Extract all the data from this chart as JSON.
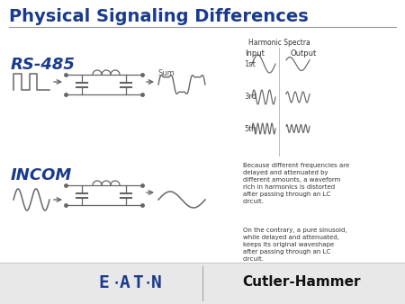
{
  "title": "Physical Signaling Differences",
  "title_color": "#1a3a8c",
  "title_fontsize": 14,
  "rs485_label": "RS-485",
  "incom_label": "INCOM",
  "harmonic_spectra_label": "Harmonic Spectra",
  "input_label": "Input",
  "output_label": "Output",
  "row_labels": [
    "1st",
    "3rd",
    "5th"
  ],
  "sum_label": "Sum",
  "because_text": "Because different frequencies are\ndelayed and attenuated by\ndifferent amounts, a waveform\nrich in harmonics is distorted\nafter passing through an LC\ncircuit.",
  "contrary_text": "On the contrary, a pure sinusoid,\nwhile delayed and attenuated,\nkeeps its original waveshape\nafter passing through an LC\ncircuit.",
  "cutler_text": "Cutler-Hammer",
  "label_color": "#1a3a8c",
  "wave_color": "#666666",
  "footer_bg": "#e0e0e0",
  "eaton_color": "#1a3a8c"
}
